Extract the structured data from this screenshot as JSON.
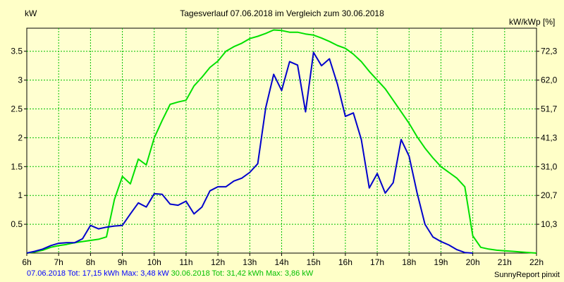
{
  "chart_data": {
    "type": "line",
    "title": "Tagesverlauf 07.06.2018 im Vergleich zum 30.06.2018",
    "ylabel_left": "kW",
    "ylabel_right": "kW/kWp [%]",
    "x_ticks": [
      "6h",
      "7h",
      "8h",
      "9h",
      "10h",
      "11h",
      "12h",
      "13h",
      "14h",
      "15h",
      "16h",
      "17h",
      "18h",
      "19h",
      "20h",
      "21h",
      "22h"
    ],
    "xlim": [
      6,
      22
    ],
    "ylim": [
      0,
      3.9
    ],
    "y_ticks_left": [
      "0.5",
      "1",
      "1.5",
      "2",
      "2.5",
      "3",
      "3.5"
    ],
    "y_tick_values_left": [
      0.5,
      1,
      1.5,
      2,
      2.5,
      3,
      3.5
    ],
    "y_ticks_right": [
      "10,3",
      "20,7",
      "31,0",
      "41,3",
      "51,7",
      "62,0",
      "72,3"
    ],
    "grid": true,
    "series": [
      {
        "name": "07.06.2018",
        "color": "#0000CC",
        "x": [
          6.0,
          6.25,
          6.5,
          6.75,
          7.0,
          7.25,
          7.5,
          7.75,
          8.0,
          8.25,
          8.5,
          8.75,
          9.0,
          9.25,
          9.5,
          9.75,
          10.0,
          10.25,
          10.5,
          10.75,
          11.0,
          11.25,
          11.5,
          11.75,
          12.0,
          12.25,
          12.5,
          12.75,
          13.0,
          13.25,
          13.5,
          13.75,
          14.0,
          14.25,
          14.5,
          14.75,
          15.0,
          15.25,
          15.5,
          15.75,
          16.0,
          16.25,
          16.5,
          16.75,
          17.0,
          17.25,
          17.5,
          17.75,
          18.0,
          18.25,
          18.5,
          18.75,
          19.0,
          19.25,
          19.5,
          19.75,
          20.0
        ],
        "y": [
          0.0,
          0.03,
          0.07,
          0.13,
          0.17,
          0.18,
          0.18,
          0.25,
          0.48,
          0.42,
          0.45,
          0.47,
          0.48,
          0.68,
          0.87,
          0.8,
          1.03,
          1.02,
          0.85,
          0.83,
          0.9,
          0.68,
          0.8,
          1.08,
          1.15,
          1.15,
          1.25,
          1.3,
          1.4,
          1.55,
          2.52,
          3.1,
          2.82,
          3.32,
          3.26,
          2.45,
          3.48,
          3.25,
          3.37,
          2.93,
          2.37,
          2.43,
          1.97,
          1.13,
          1.38,
          1.04,
          1.22,
          1.97,
          1.68,
          1.05,
          0.5,
          0.28,
          0.2,
          0.14,
          0.06,
          0.01,
          0.0
        ]
      },
      {
        "name": "30.06.2018",
        "color": "#00E000",
        "x": [
          6.0,
          6.25,
          6.5,
          6.75,
          7.0,
          7.25,
          7.5,
          7.75,
          8.0,
          8.25,
          8.5,
          8.75,
          9.0,
          9.25,
          9.5,
          9.75,
          10.0,
          10.25,
          10.5,
          10.75,
          11.0,
          11.25,
          11.5,
          11.75,
          12.0,
          12.25,
          12.5,
          12.75,
          13.0,
          13.25,
          13.5,
          13.75,
          14.0,
          14.25,
          14.5,
          14.75,
          15.0,
          15.25,
          15.5,
          15.75,
          16.0,
          16.25,
          16.5,
          16.75,
          17.0,
          17.25,
          17.5,
          17.75,
          18.0,
          18.25,
          18.5,
          18.75,
          19.0,
          19.25,
          19.5,
          19.75,
          20.0,
          20.25,
          20.5,
          20.75,
          21.0,
          21.25,
          21.5,
          21.75,
          22.0
        ],
        "y": [
          0.0,
          0.02,
          0.05,
          0.1,
          0.13,
          0.15,
          0.18,
          0.2,
          0.22,
          0.24,
          0.28,
          0.93,
          1.33,
          1.2,
          1.63,
          1.53,
          2.0,
          2.3,
          2.58,
          2.62,
          2.65,
          2.9,
          3.05,
          3.22,
          3.33,
          3.5,
          3.58,
          3.64,
          3.72,
          3.76,
          3.81,
          3.87,
          3.86,
          3.83,
          3.83,
          3.8,
          3.78,
          3.73,
          3.67,
          3.6,
          3.55,
          3.45,
          3.32,
          3.15,
          3.0,
          2.85,
          2.65,
          2.45,
          2.25,
          2.02,
          1.82,
          1.65,
          1.5,
          1.4,
          1.3,
          1.15,
          0.3,
          0.1,
          0.07,
          0.05,
          0.04,
          0.03,
          0.02,
          0.01,
          0.0
        ]
      }
    ]
  },
  "footer": {
    "series1_summary": "07.06.2018 Tot: 17,15 kWh Max: 3,48 kW",
    "series2_summary": "30.06.2018 Tot: 31,42 kWh Max: 3,86 kW",
    "brand": "SunnyReport pinxit"
  },
  "colors": {
    "background": "#FFFFC8",
    "plot_background": "#FFFFD0",
    "grid": "#00C000",
    "axis": "#000000"
  }
}
